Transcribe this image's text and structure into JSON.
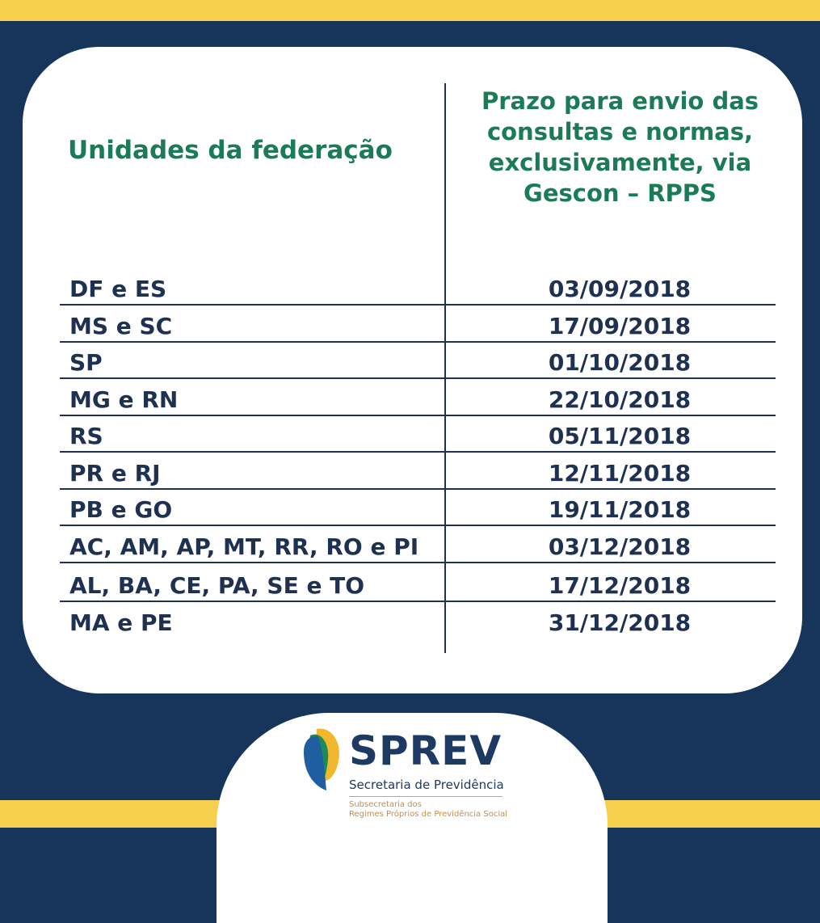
{
  "header": {
    "col1": "Unidades da federação",
    "col2": "Prazo para envio das consultas e normas, exclusivamente, via Gescon – RPPS"
  },
  "rows": [
    {
      "uf": "DF e ES",
      "date": "03/09/2018"
    },
    {
      "uf": "MS e SC",
      "date": "17/09/2018"
    },
    {
      "uf": "SP",
      "date": "01/10/2018"
    },
    {
      "uf": "MG e RN",
      "date": "22/10/2018"
    },
    {
      "uf": "RS",
      "date": "05/11/2018"
    },
    {
      "uf": "PR e RJ",
      "date": "12/11/2018"
    },
    {
      "uf": "PB e GO",
      "date": "19/11/2018"
    },
    {
      "uf": "AC, AM, AP, MT, RR, RO e PI",
      "date": "03/12/2018"
    },
    {
      "uf": "AL, BA, CE, PA, SE e TO",
      "date": "17/12/2018"
    },
    {
      "uf": "MA e PE",
      "date": "31/12/2018"
    }
  ],
  "logo": {
    "name": "SPREV",
    "line1": "Secretaria de Previdência",
    "line2": "Subsecretaria dos",
    "line3": "Regimes Próprios de Previdência Social"
  },
  "colors": {
    "navy": "#17345a",
    "yellow": "#f6d04d",
    "green": "#1b7b57"
  }
}
